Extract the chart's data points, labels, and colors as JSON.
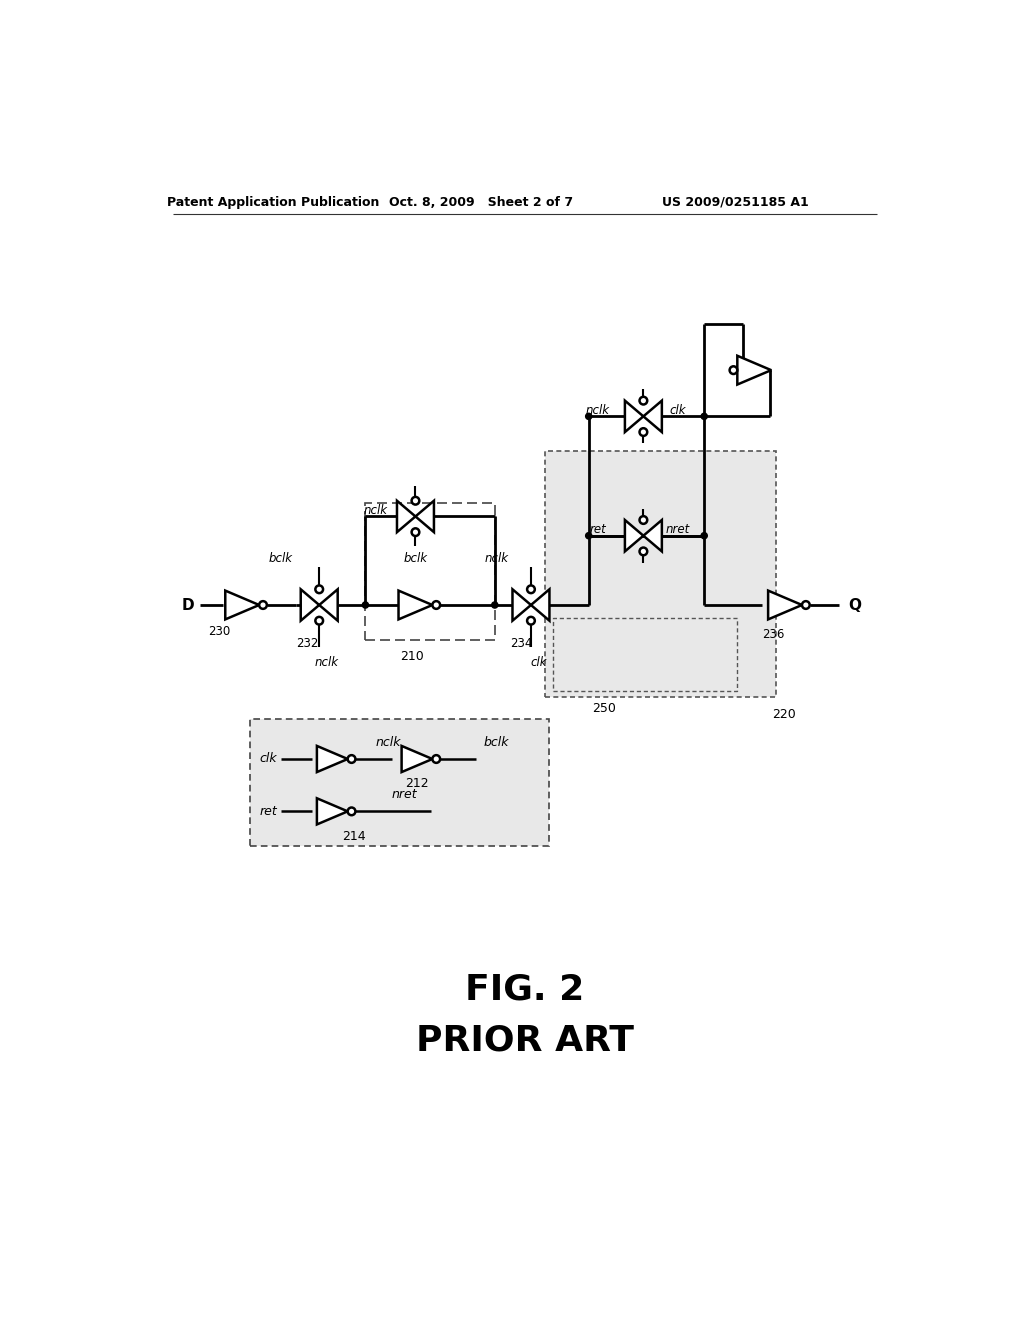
{
  "header_left": "Patent Application Publication",
  "header_center": "Oct. 8, 2009   Sheet 2 of 7",
  "header_right": "US 2009/0251185 A1",
  "bg_color": "#ffffff",
  "line_color": "#000000"
}
